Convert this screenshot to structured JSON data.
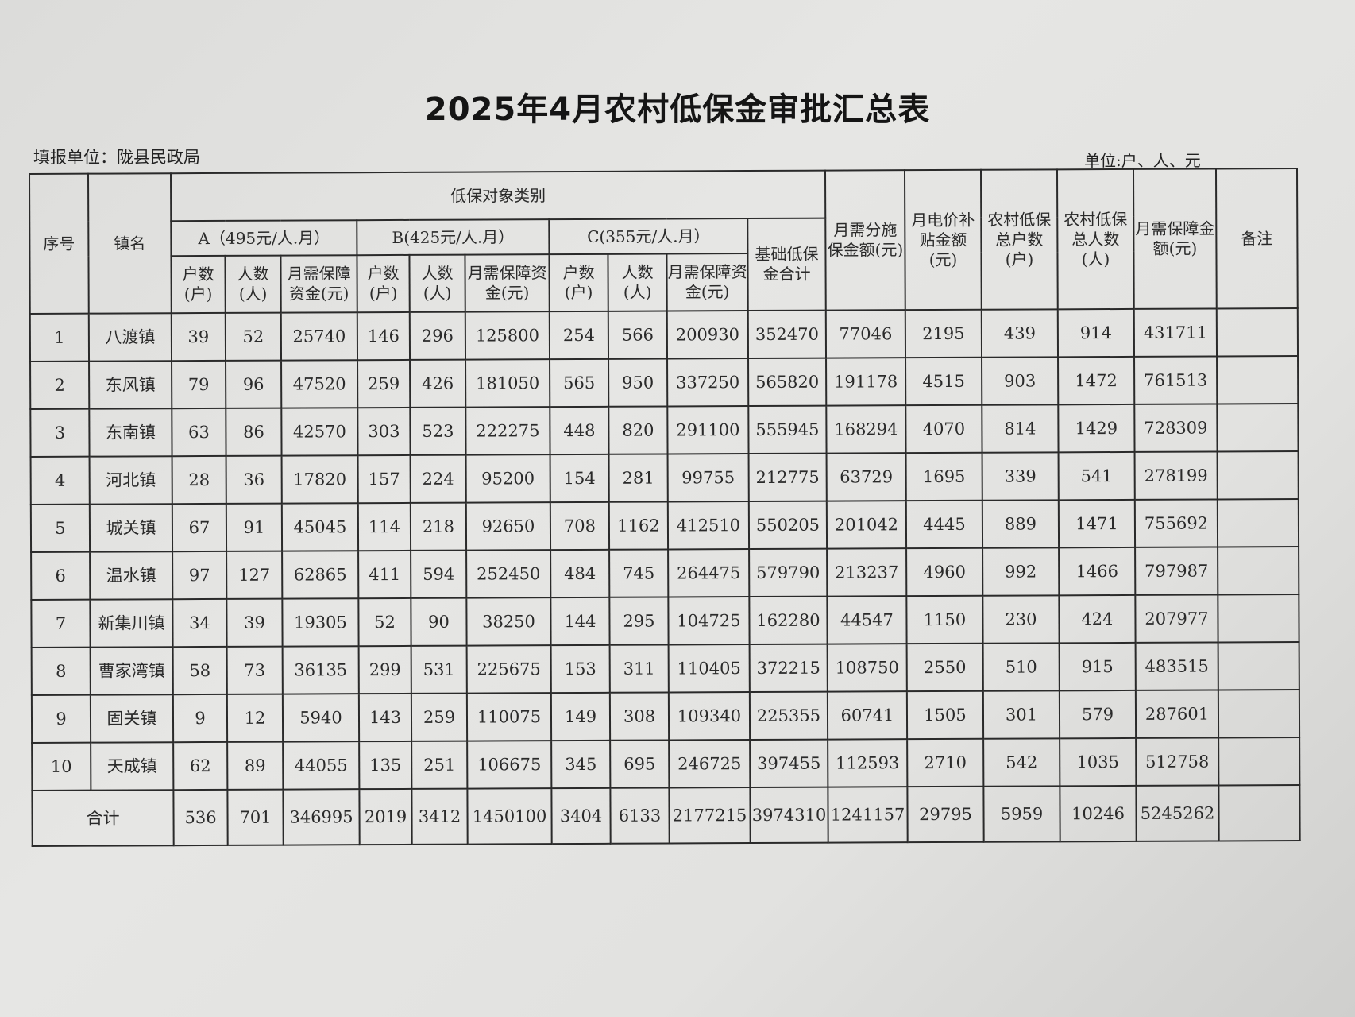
{
  "title": "2025年4月农村低保金审批汇总表",
  "filing_unit": "填报单位：陇县民政局",
  "units": "单位:户、人、元",
  "header": {
    "seq": "序号",
    "town": "镇名",
    "category": "低保对象类别",
    "group_a": "A（495元/人.月）",
    "group_b": "B(425元/人.月）",
    "group_c": "C(355元/人.月）",
    "households": "户数(户)",
    "people": "人数(人)",
    "monthly_fund": "月需保障资金(元)",
    "basic_total": "基础低保金合计",
    "subsidy_measures": "月需分施保金额(元)",
    "electricity_subsidy": "月电价补贴金额(元)",
    "total_households": "农村低保总户数(户)",
    "total_people": "农村低保总人数(人)",
    "monthly_total": "月需保障金额(元)",
    "remarks": "备注"
  },
  "rows": [
    [
      "1",
      "八渡镇",
      "39",
      "52",
      "25740",
      "146",
      "296",
      "125800",
      "254",
      "566",
      "200930",
      "352470",
      "77046",
      "2195",
      "439",
      "914",
      "431711",
      ""
    ],
    [
      "2",
      "东风镇",
      "79",
      "96",
      "47520",
      "259",
      "426",
      "181050",
      "565",
      "950",
      "337250",
      "565820",
      "191178",
      "4515",
      "903",
      "1472",
      "761513",
      ""
    ],
    [
      "3",
      "东南镇",
      "63",
      "86",
      "42570",
      "303",
      "523",
      "222275",
      "448",
      "820",
      "291100",
      "555945",
      "168294",
      "4070",
      "814",
      "1429",
      "728309",
      ""
    ],
    [
      "4",
      "河北镇",
      "28",
      "36",
      "17820",
      "157",
      "224",
      "95200",
      "154",
      "281",
      "99755",
      "212775",
      "63729",
      "1695",
      "339",
      "541",
      "278199",
      ""
    ],
    [
      "5",
      "城关镇",
      "67",
      "91",
      "45045",
      "114",
      "218",
      "92650",
      "708",
      "1162",
      "412510",
      "550205",
      "201042",
      "4445",
      "889",
      "1471",
      "755692",
      ""
    ],
    [
      "6",
      "温水镇",
      "97",
      "127",
      "62865",
      "411",
      "594",
      "252450",
      "484",
      "745",
      "264475",
      "579790",
      "213237",
      "4960",
      "992",
      "1466",
      "797987",
      ""
    ],
    [
      "7",
      "新集川镇",
      "34",
      "39",
      "19305",
      "52",
      "90",
      "38250",
      "144",
      "295",
      "104725",
      "162280",
      "44547",
      "1150",
      "230",
      "424",
      "207977",
      ""
    ],
    [
      "8",
      "曹家湾镇",
      "58",
      "73",
      "36135",
      "299",
      "531",
      "225675",
      "153",
      "311",
      "110405",
      "372215",
      "108750",
      "2550",
      "510",
      "915",
      "483515",
      ""
    ],
    [
      "9",
      "固关镇",
      "9",
      "12",
      "5940",
      "143",
      "259",
      "110075",
      "149",
      "308",
      "109340",
      "225355",
      "60741",
      "1505",
      "301",
      "579",
      "287601",
      ""
    ],
    [
      "10",
      "天成镇",
      "62",
      "89",
      "44055",
      "135",
      "251",
      "106675",
      "345",
      "695",
      "246725",
      "397455",
      "112593",
      "2710",
      "542",
      "1035",
      "512758",
      ""
    ]
  ],
  "total": {
    "label": "合计",
    "values": [
      "536",
      "701",
      "346995",
      "2019",
      "3412",
      "1450100",
      "3404",
      "6133",
      "2177215",
      "3974310",
      "1241157",
      "29795",
      "5959",
      "10246",
      "5245262",
      ""
    ]
  }
}
